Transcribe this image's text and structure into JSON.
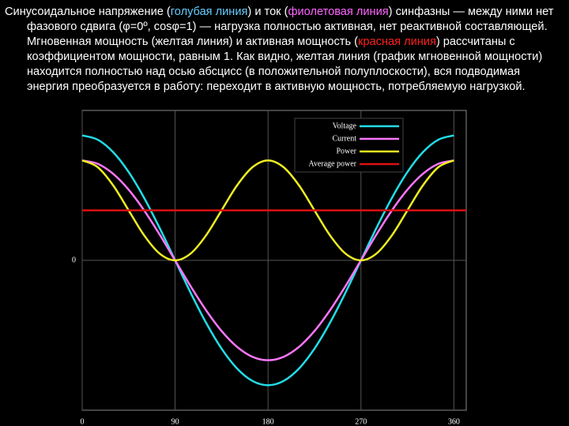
{
  "text": [
    {
      "text": "Синусоидальное напряжение (",
      "color": "#ffffff"
    },
    {
      "text": "голубая линия",
      "color": "#66ccff"
    },
    {
      "text": ") и ток (",
      "color": "#ffffff"
    },
    {
      "text": "фиолетовая линия",
      "color": "#ff66ff"
    },
    {
      "text": ") синфазны — между ними нет фазового сдвига (φ=0º, cosφ=1) — нагрузка полностью активная, нет реактивной составляющей. Мгновенная мощность (желтая линия) и активная мощность (",
      "color": "#ffffff"
    },
    {
      "text": "красная линия",
      "color": "#ff2020"
    },
    {
      "text": ") рассчитаны с коэффициентом мощности, равным 1. Как видно, желтая линия (график мгновенной мощности) находится полностью над осью абсцисс (в положительной полуплоскости), вся подводимая энергия преобразуется в работу: переходит в активную мощность, потребляемую нагрузкой.",
      "color": "#ffffff"
    }
  ],
  "chart_data": {
    "type": "line",
    "x": [
      0,
      15,
      30,
      45,
      60,
      75,
      90,
      105,
      120,
      135,
      150,
      165,
      180,
      195,
      210,
      225,
      240,
      255,
      270,
      285,
      300,
      315,
      330,
      345,
      360
    ],
    "series": [
      {
        "name": "Voltage",
        "color": "#22dde8",
        "values": [
          1,
          0.966,
          0.866,
          0.707,
          0.5,
          0.259,
          0,
          -0.259,
          -0.5,
          -0.707,
          -0.866,
          -0.966,
          -1,
          -0.966,
          -0.866,
          -0.707,
          -0.5,
          -0.259,
          0,
          0.259,
          0.5,
          0.707,
          0.866,
          0.966,
          1
        ]
      },
      {
        "name": "Current",
        "color": "#ff77ff",
        "values": [
          0.8,
          0.773,
          0.693,
          0.566,
          0.4,
          0.207,
          0,
          -0.207,
          -0.4,
          -0.566,
          -0.693,
          -0.773,
          -0.8,
          -0.773,
          -0.693,
          -0.566,
          -0.4,
          -0.207,
          0,
          0.207,
          0.4,
          0.566,
          0.693,
          0.773,
          0.8
        ]
      },
      {
        "name": "Power",
        "color": "#eeee22",
        "values": [
          0.8,
          0.746,
          0.6,
          0.4,
          0.2,
          0.054,
          0,
          0.054,
          0.2,
          0.4,
          0.6,
          0.746,
          0.8,
          0.746,
          0.6,
          0.4,
          0.2,
          0.054,
          0,
          0.054,
          0.2,
          0.4,
          0.6,
          0.746,
          0.8
        ]
      },
      {
        "name": "Average power",
        "color": "#dd1111",
        "x": [
          0,
          372
        ],
        "values": [
          0.4,
          0.4
        ]
      }
    ],
    "xlim": [
      0,
      372
    ],
    "xticks": [
      0,
      90,
      180,
      270,
      360
    ],
    "ylim": [
      -1.2,
      1.2
    ],
    "yticks": [
      0
    ],
    "grid": true,
    "legend": "upper-right"
  }
}
